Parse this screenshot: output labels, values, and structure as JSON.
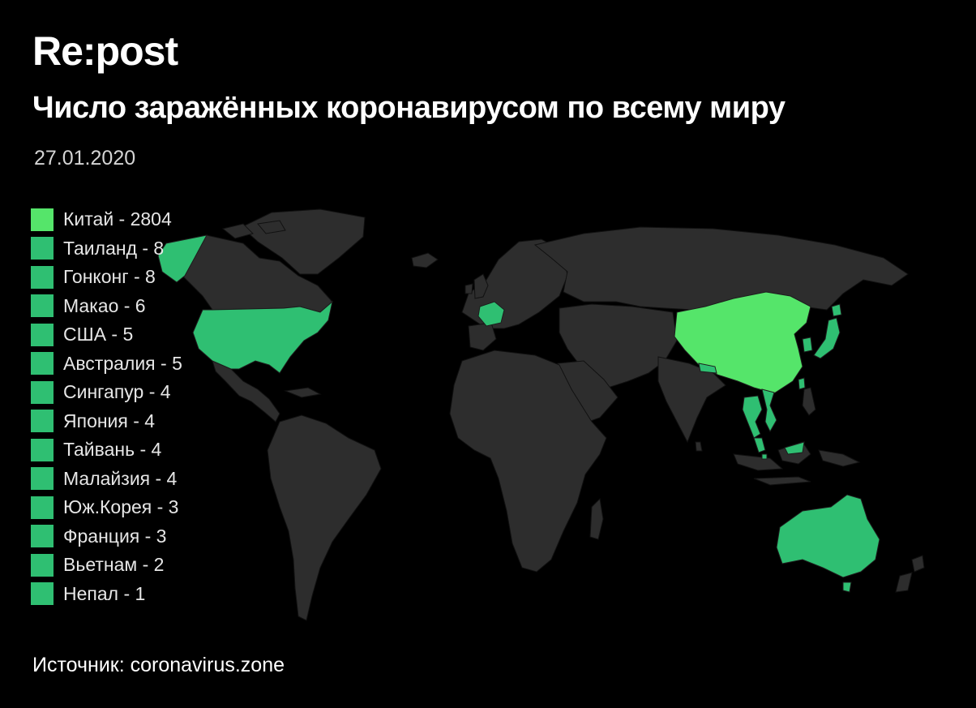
{
  "brand": "Re:post",
  "title": "Число заражённых коронавирусом по всему миру",
  "date": "27.01.2020",
  "colors": {
    "background": "#000000",
    "land": "#2d2d2d",
    "top_country": "#55e56a",
    "affected": "#2fbf72"
  },
  "legend": [
    {
      "label": "Китай - 2804",
      "country": "Китай",
      "cases": 2804,
      "color": "#55e56a"
    },
    {
      "label": "Таиланд - 8",
      "country": "Таиланд",
      "cases": 8,
      "color": "#2fbf72"
    },
    {
      "label": "Гонконг - 8",
      "country": "Гонконг",
      "cases": 8,
      "color": "#2fbf72"
    },
    {
      "label": "Макао - 6",
      "country": "Макао",
      "cases": 6,
      "color": "#2fbf72"
    },
    {
      "label": "США - 5",
      "country": "США",
      "cases": 5,
      "color": "#2fbf72"
    },
    {
      "label": "Австралия - 5",
      "country": "Австралия",
      "cases": 5,
      "color": "#2fbf72"
    },
    {
      "label": "Сингапур - 4",
      "country": "Сингапур",
      "cases": 4,
      "color": "#2fbf72"
    },
    {
      "label": "Япония - 4",
      "country": "Япония",
      "cases": 4,
      "color": "#2fbf72"
    },
    {
      "label": "Тайвань - 4",
      "country": "Тайвань",
      "cases": 4,
      "color": "#2fbf72"
    },
    {
      "label": "Малайзия - 4",
      "country": "Малайзия",
      "cases": 4,
      "color": "#2fbf72"
    },
    {
      "label": "Юж.Корея - 3",
      "country": "Юж.Корея",
      "cases": 3,
      "color": "#2fbf72"
    },
    {
      "label": "Франция - 3",
      "country": "Франция",
      "cases": 3,
      "color": "#2fbf72"
    },
    {
      "label": "Вьетнам - 2",
      "country": "Вьетнам",
      "cases": 2,
      "color": "#2fbf72"
    },
    {
      "label": "Непал - 1",
      "country": "Непал",
      "cases": 1,
      "color": "#2fbf72"
    }
  ],
  "source": "Источник: coronavirus.zone"
}
